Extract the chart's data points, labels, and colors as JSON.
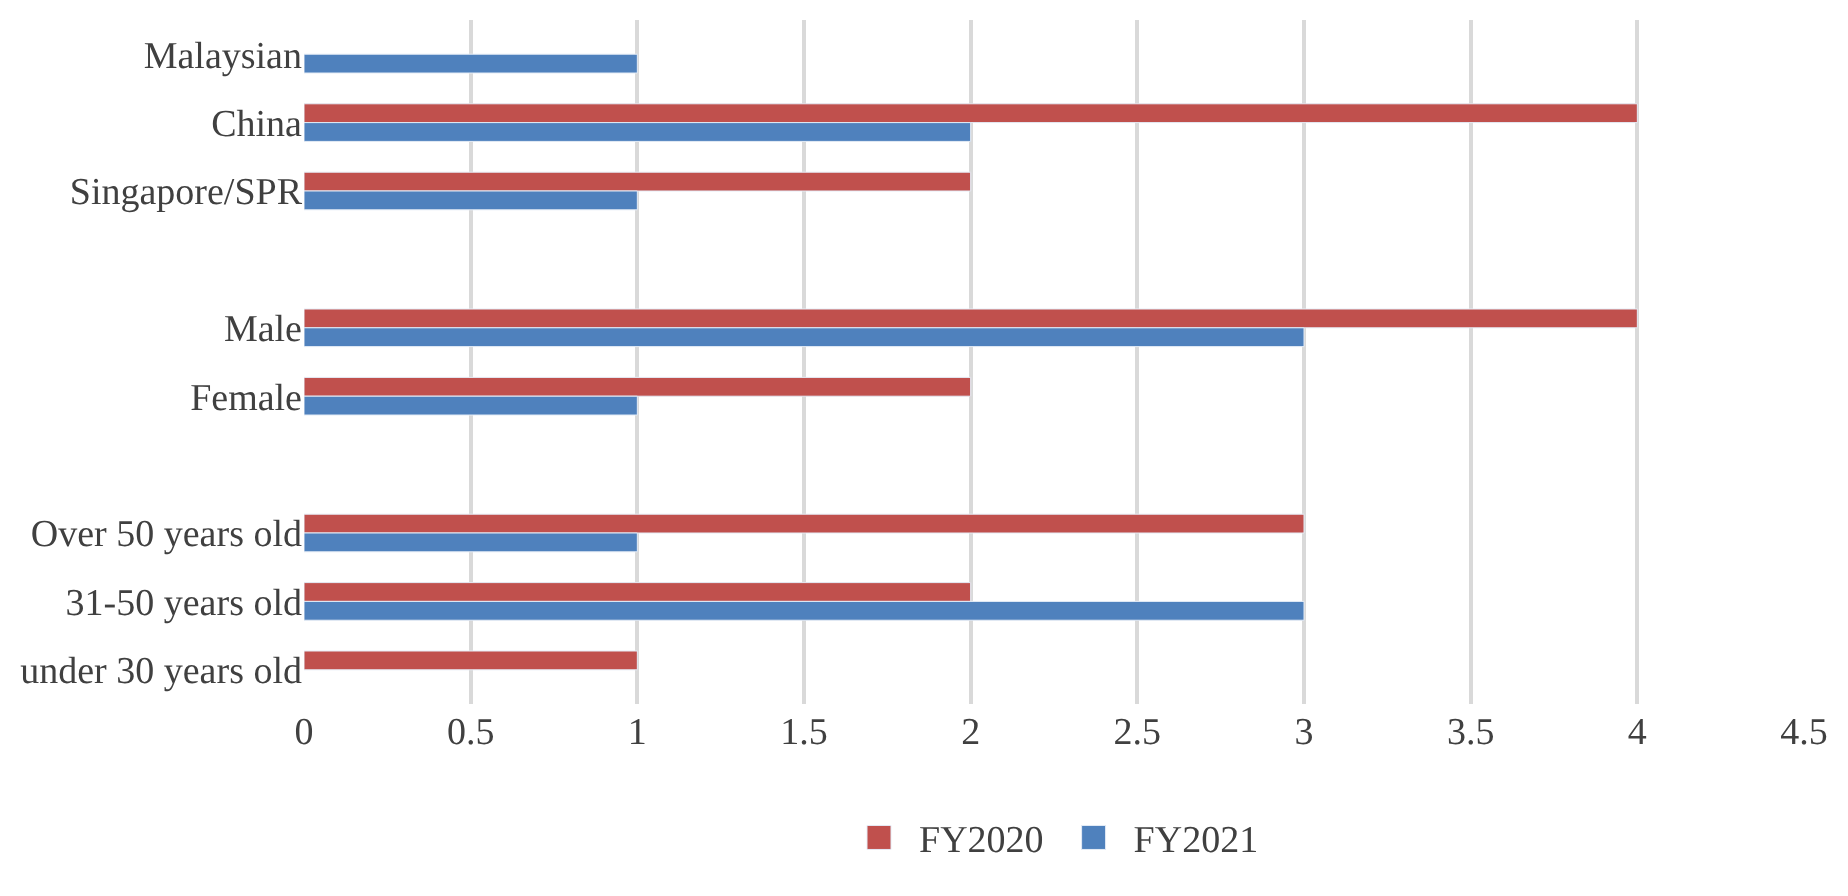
{
  "chart_data": {
    "type": "bar",
    "orientation": "horizontal",
    "categories": [
      "Malaysian",
      "China",
      "Singapore/SPR",
      null,
      "Male",
      "Female",
      null,
      "Over 50 years old",
      "31-50 years old",
      "under 30 years old"
    ],
    "series": [
      {
        "name": "FY2020",
        "color": "#c0504d",
        "values": [
          null,
          4,
          2,
          null,
          4,
          2,
          null,
          3,
          2,
          1
        ]
      },
      {
        "name": "FY2021",
        "color": "#4f81bd",
        "values": [
          1,
          2,
          1,
          null,
          3,
          1,
          null,
          1,
          3,
          null
        ]
      }
    ],
    "xlim": [
      0,
      4.5
    ],
    "xticks": [
      0,
      0.5,
      1,
      1.5,
      2,
      2.5,
      3,
      3.5,
      4,
      4.5
    ],
    "grid": "x",
    "legend": "bottom"
  }
}
